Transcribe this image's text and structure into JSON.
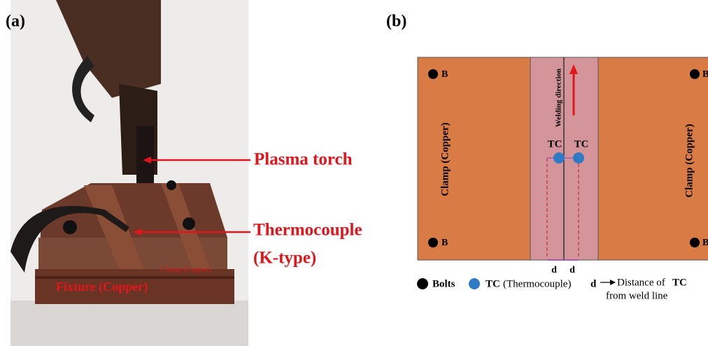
{
  "panel_a": {
    "label": "(a)",
    "plasma_torch": "Plasma torch",
    "thermocouple": "Thermocouple",
    "thermocouple_type": "(K-type)",
    "clamp": "Clamp (Copper)",
    "fixture": "Fixture (Copper)"
  },
  "panel_b": {
    "label": "(b)",
    "welding_direction": "Welding direction",
    "clamp_left": "Clamp (Copper)",
    "clamp_right": "Clamp (Copper)",
    "bolts": [
      "B",
      "B",
      "B",
      "B"
    ],
    "tc_labels": [
      "TC",
      "TC"
    ],
    "d_labels": [
      "d",
      "d"
    ],
    "legend": {
      "bolts": "Bolts",
      "tc": "TC",
      "tc_desc": "(Thermocouple)",
      "d": "d",
      "d_desc_1": "Distance of",
      "d_desc_tc": "TC",
      "d_desc_2": "from weld line"
    }
  }
}
